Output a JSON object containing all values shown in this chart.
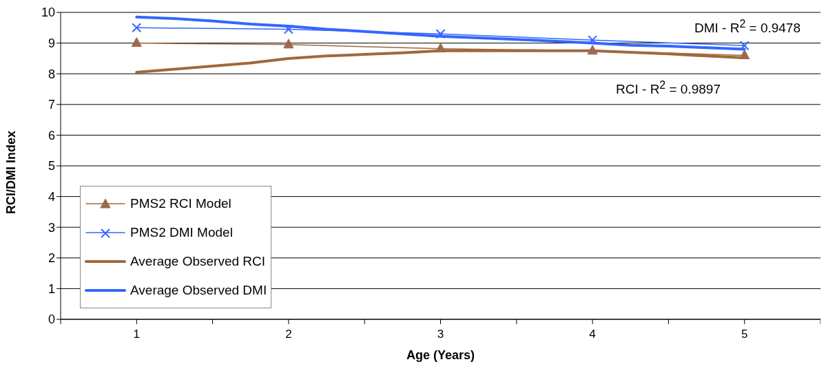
{
  "chart_data": {
    "type": "line",
    "xlabel": "Age (Years)",
    "ylabel": "RCI/DMI Index",
    "xlim": [
      0.5,
      5.5
    ],
    "xticks": [
      {
        "value": 0.5,
        "label": null
      },
      1,
      {
        "value": 1.5,
        "label": null
      },
      2,
      {
        "value": 2.5,
        "label": null
      },
      3,
      {
        "value": 3.5,
        "label": null
      },
      4,
      {
        "value": 4.5,
        "label": null
      },
      5,
      {
        "value": 5.5,
        "label": null
      }
    ],
    "ylim": [
      0,
      10
    ],
    "yticks": [
      0,
      1,
      2,
      3,
      4,
      5,
      6,
      7,
      8,
      9,
      10
    ],
    "grid": "y",
    "legend": "bottom left",
    "series": [
      {
        "name": "PMS2 RCI Model",
        "color": "#a0683a",
        "marker": "triangle",
        "x": [
          1,
          2,
          3,
          4,
          5
        ],
        "values": [
          9.0,
          8.95,
          8.82,
          8.75,
          8.6
        ]
      },
      {
        "name": "PMS2 DMI Model",
        "color": "#3366ff",
        "marker": "cross",
        "x": [
          1,
          2,
          3,
          4,
          5
        ],
        "values": [
          9.5,
          9.45,
          9.3,
          9.1,
          8.92
        ]
      },
      {
        "name": "Average Observed RCI",
        "color": "#a0683a",
        "marker": "none",
        "x": [
          1,
          1.25,
          1.5,
          1.75,
          2,
          2.25,
          2.5,
          2.75,
          3,
          3.5,
          4,
          4.25,
          4.5,
          4.75,
          5
        ],
        "values": [
          8.05,
          8.15,
          8.25,
          8.35,
          8.5,
          8.58,
          8.63,
          8.68,
          8.75,
          8.75,
          8.75,
          8.7,
          8.65,
          8.58,
          8.52
        ]
      },
      {
        "name": "Average Observed DMI",
        "color": "#3366ff",
        "marker": "none",
        "x": [
          1,
          1.25,
          1.5,
          1.75,
          2,
          2.25,
          2.5,
          2.75,
          3,
          3.5,
          4,
          4.25,
          4.5,
          4.75,
          5
        ],
        "values": [
          9.85,
          9.8,
          9.72,
          9.62,
          9.55,
          9.45,
          9.38,
          9.3,
          9.22,
          9.12,
          9.0,
          8.93,
          8.9,
          8.85,
          8.8
        ]
      }
    ],
    "annotations": [
      "DMI - R$^{2}$ = 0.9478",
      "RCI - R$^{2}$ = 0.9897"
    ]
  }
}
